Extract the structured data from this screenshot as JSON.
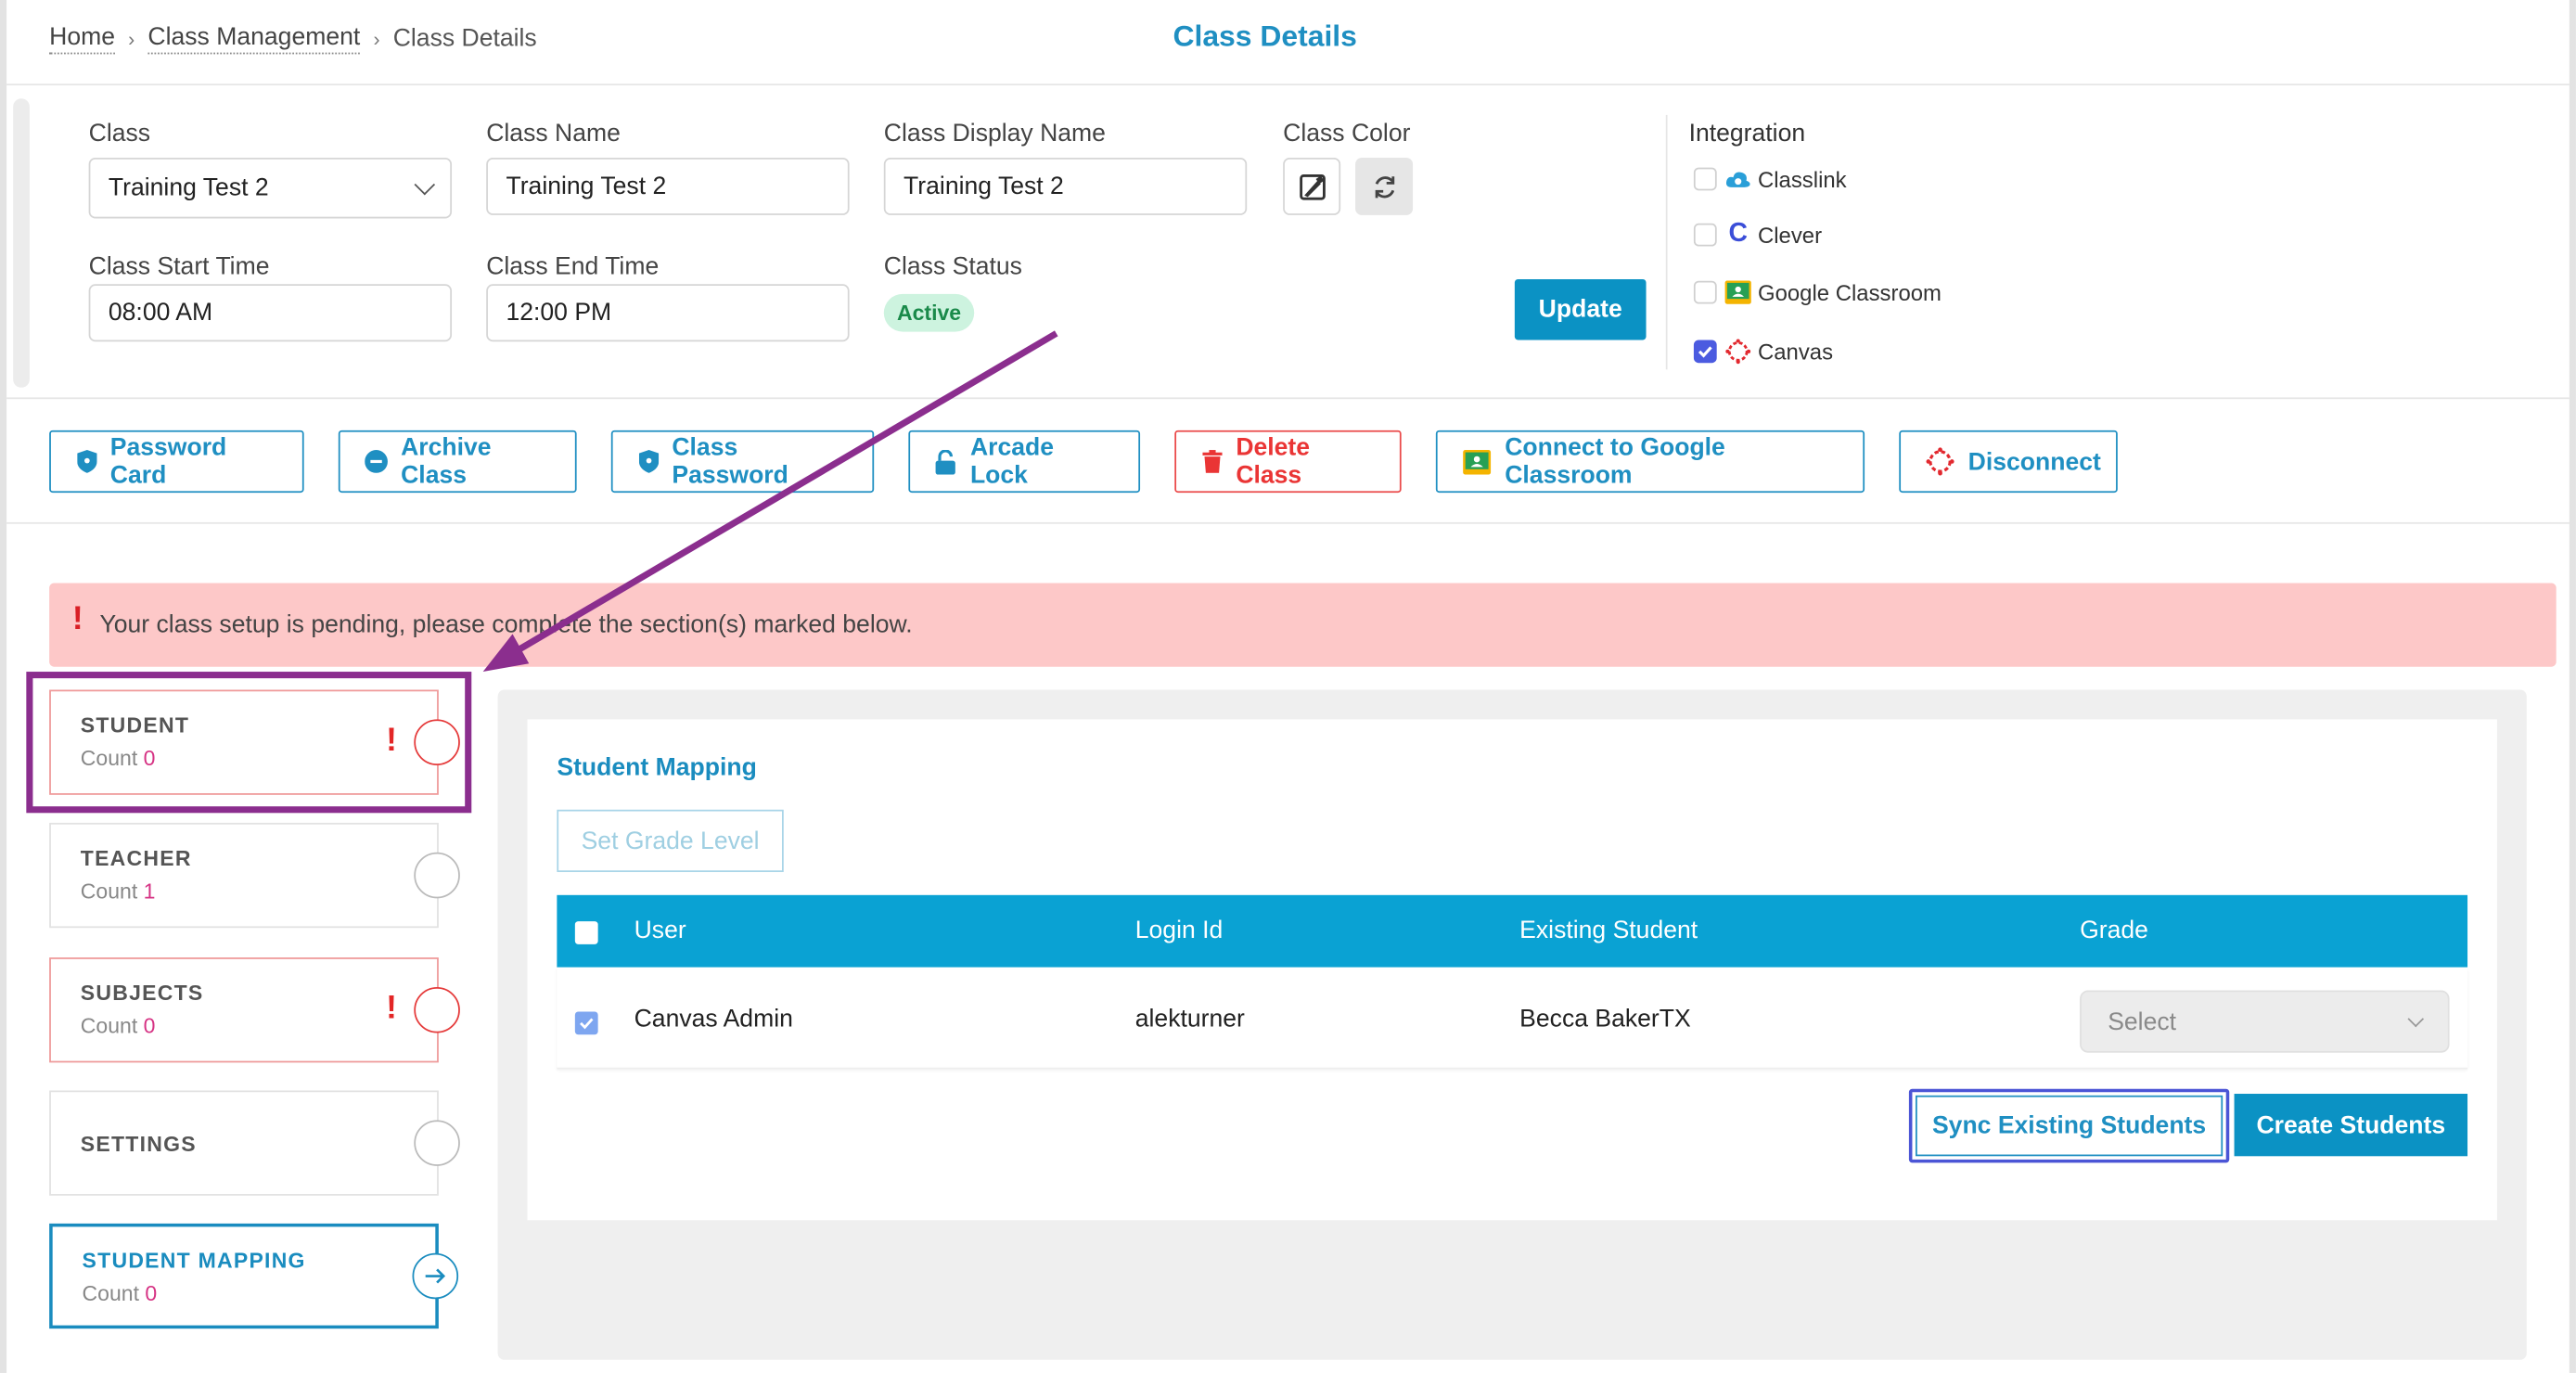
{
  "breadcrumb": {
    "home": "Home",
    "class_management": "Class Management",
    "current": "Class Details"
  },
  "page_title": "Class Details",
  "form": {
    "class_label": "Class",
    "class_value": "Training Test 2",
    "class_name_label": "Class Name",
    "class_name_value": "Training Test 2",
    "display_name_label": "Class Display Name",
    "display_name_value": "Training Test 2",
    "color_label": "Class Color",
    "start_label": "Class Start Time",
    "start_value": "08:00 AM",
    "end_label": "Class End Time",
    "end_value": "12:00 PM",
    "status_label": "Class Status",
    "status_value": "Active",
    "update_label": "Update"
  },
  "integration": {
    "title": "Integration",
    "items": [
      {
        "label": "Classlink",
        "checked": false,
        "icon": "classlink-icon"
      },
      {
        "label": "Clever",
        "checked": false,
        "icon": "clever-icon"
      },
      {
        "label": "Google Classroom",
        "checked": false,
        "icon": "google-classroom-icon"
      },
      {
        "label": "Canvas",
        "checked": true,
        "icon": "canvas-icon"
      }
    ]
  },
  "actions": {
    "password_card": "Password Card",
    "archive_class": "Archive Class",
    "class_password": "Class Password",
    "arcade_lock": "Arcade Lock",
    "delete_class": "Delete Class",
    "connect_google": "Connect to Google Classroom",
    "disconnect": "Disconnect"
  },
  "alert": {
    "mark": "!",
    "text": "Your class setup is pending, please complete the section(s) marked below."
  },
  "steps": [
    {
      "title": "STUDENT",
      "count_label": "Count",
      "count": "0",
      "status": "error"
    },
    {
      "title": "TEACHER",
      "count_label": "Count",
      "count": "1",
      "status": "pending"
    },
    {
      "title": "SUBJECTS",
      "count_label": "Count",
      "count": "0",
      "status": "error"
    },
    {
      "title": "SETTINGS",
      "status": "pending"
    },
    {
      "title": "STUDENT MAPPING",
      "count_label": "Count",
      "count": "0",
      "status": "active"
    }
  ],
  "mapping": {
    "title": "Student Mapping",
    "set_grade_label": "Set Grade Level",
    "columns": [
      "User",
      "Login Id",
      "Existing Student",
      "Grade"
    ],
    "rows": [
      {
        "user": "Canvas Admin",
        "login_id": "alekturner",
        "existing_student": "Becca BakerTX",
        "grade_placeholder": "Select",
        "checked": true
      }
    ],
    "sync_label": "Sync Existing Students",
    "create_label": "Create Students"
  },
  "colors": {
    "accent": "#1f8fc2",
    "table_header": "#0aa2d3",
    "danger": "#ea3535",
    "alert_bg": "#fdc8c8",
    "annotation": "#8b2e8e"
  }
}
